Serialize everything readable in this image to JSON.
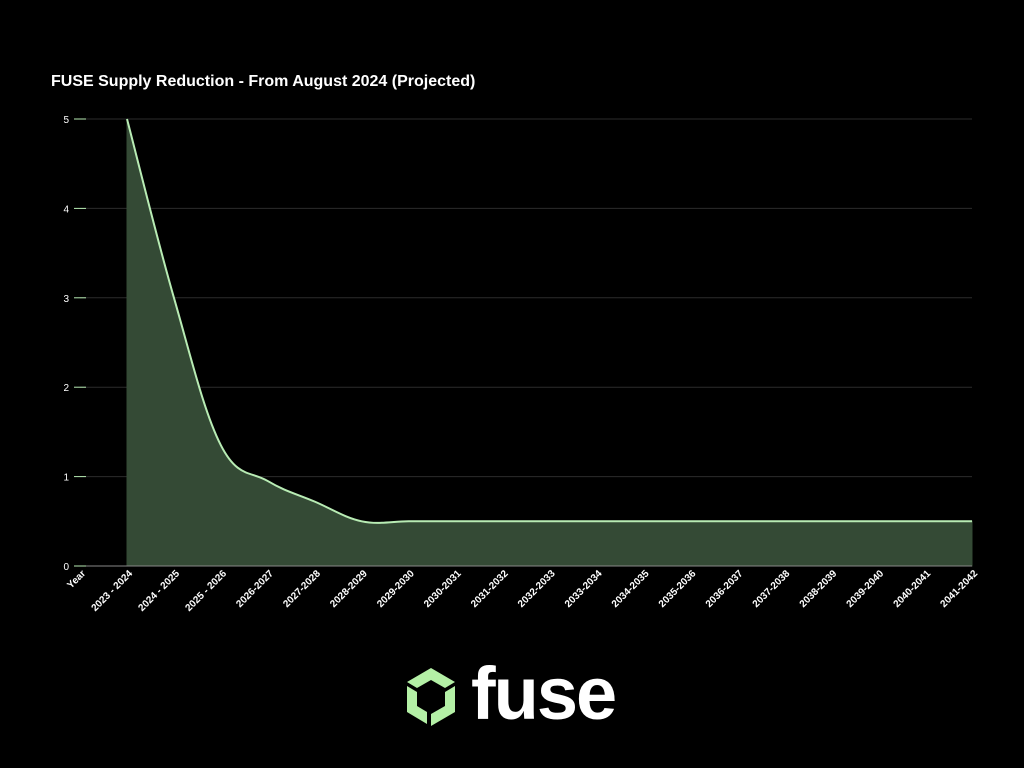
{
  "chart_data": {
    "type": "area",
    "title": "FUSE Supply Reduction - From August 2024 (Projected)",
    "xlabel": "Year",
    "ylabel": "",
    "ylim": [
      0,
      5
    ],
    "yticks": [
      "0",
      "1",
      "2",
      "3",
      "4",
      "5"
    ],
    "grid": true,
    "categories": [
      "2023 - 2024",
      "2024 - 2025",
      "2025 - 2026",
      "2026-2027",
      "2027-2028",
      "2028-2029",
      "2029-2030",
      "2030-2031",
      "2031-2032",
      "2032-2033",
      "2033-2034",
      "2034-2035",
      "2035-2036",
      "2036-2037",
      "2037-2038",
      "2038-2039",
      "2039-2040",
      "2040-2041",
      "2041-2042"
    ],
    "series": [
      {
        "values": [
          5,
          3,
          1.35,
          0.95,
          0.72,
          0.5,
          0.5,
          0.5,
          0.5,
          0.5,
          0.5,
          0.5,
          0.5,
          0.5,
          0.5,
          0.5,
          0.5,
          0.5,
          0.5
        ]
      }
    ],
    "colors": {
      "line": "#b8ecb4",
      "fill": "#344a35",
      "grid": "#2c2c2c",
      "axis": "#888888"
    }
  },
  "logo": {
    "text": "fuse",
    "mark_color": "#b4f0a6"
  }
}
